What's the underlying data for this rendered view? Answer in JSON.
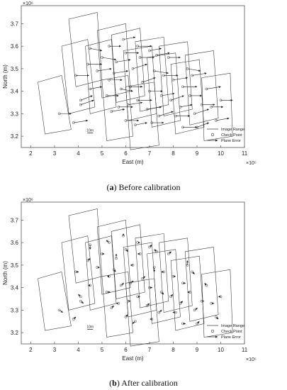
{
  "captions": [
    {
      "letter": "a",
      "text": " Before calibration"
    },
    {
      "letter": "b",
      "text": " After calibration"
    }
  ],
  "chart_data": [
    {
      "type": "scatter",
      "title": "",
      "xlabel": "East (m)",
      "ylabel": "North (m)",
      "x_exponent_label": "×10⁵",
      "y_exponent_label": "×10⁶",
      "xlim": [
        1.6,
        11.0
      ],
      "ylim": [
        3.15,
        3.78
      ],
      "xticks": [
        2,
        3,
        4,
        5,
        6,
        7,
        8,
        9,
        10,
        11
      ],
      "yticks": [
        3.2,
        3.3,
        3.4,
        3.5,
        3.6,
        3.7
      ],
      "scale_label": "10m",
      "error_scale": 1.0,
      "legend": {
        "position": "bottom-right",
        "entries": [
          "Image Range",
          "Check Point",
          "Plane Error"
        ]
      },
      "image_ranges": [
        [
          [
            2.3,
            3.44
          ],
          [
            3.3,
            3.47
          ],
          [
            3.7,
            3.23
          ],
          [
            2.6,
            3.21
          ]
        ],
        [
          [
            3.3,
            3.6
          ],
          [
            4.4,
            3.63
          ],
          [
            4.7,
            3.33
          ],
          [
            3.6,
            3.3
          ]
        ],
        [
          [
            3.6,
            3.72
          ],
          [
            4.8,
            3.75
          ],
          [
            5.0,
            3.45
          ],
          [
            3.9,
            3.42
          ]
        ],
        [
          [
            4.3,
            3.6
          ],
          [
            5.4,
            3.63
          ],
          [
            5.6,
            3.33
          ],
          [
            4.5,
            3.3
          ]
        ],
        [
          [
            4.8,
            3.67
          ],
          [
            6.0,
            3.7
          ],
          [
            6.2,
            3.4
          ],
          [
            5.0,
            3.37
          ]
        ],
        [
          [
            5.4,
            3.65
          ],
          [
            6.6,
            3.68
          ],
          [
            6.8,
            3.38
          ],
          [
            5.6,
            3.35
          ]
        ],
        [
          [
            5.9,
            3.58
          ],
          [
            7.1,
            3.6
          ],
          [
            7.3,
            3.3
          ],
          [
            6.1,
            3.27
          ]
        ],
        [
          [
            6.4,
            3.62
          ],
          [
            7.6,
            3.64
          ],
          [
            7.8,
            3.34
          ],
          [
            6.6,
            3.31
          ]
        ],
        [
          [
            6.9,
            3.55
          ],
          [
            8.1,
            3.57
          ],
          [
            8.3,
            3.27
          ],
          [
            7.1,
            3.24
          ]
        ],
        [
          [
            7.4,
            3.6
          ],
          [
            8.6,
            3.62
          ],
          [
            8.8,
            3.32
          ],
          [
            7.6,
            3.29
          ]
        ],
        [
          [
            7.9,
            3.52
          ],
          [
            9.1,
            3.54
          ],
          [
            9.3,
            3.24
          ],
          [
            8.1,
            3.21
          ]
        ],
        [
          [
            8.5,
            3.56
          ],
          [
            9.7,
            3.58
          ],
          [
            9.9,
            3.28
          ],
          [
            8.7,
            3.25
          ]
        ],
        [
          [
            9.2,
            3.46
          ],
          [
            10.4,
            3.48
          ],
          [
            10.5,
            3.2
          ],
          [
            9.3,
            3.18
          ]
        ],
        [
          [
            5.0,
            3.45
          ],
          [
            6.1,
            3.47
          ],
          [
            6.3,
            3.2
          ],
          [
            5.2,
            3.18
          ]
        ],
        [
          [
            6.0,
            3.42
          ],
          [
            7.2,
            3.44
          ],
          [
            7.4,
            3.16
          ],
          [
            6.2,
            3.14
          ]
        ]
      ],
      "check_points": [
        [
          3.2,
          3.3
        ],
        [
          3.8,
          3.26
        ],
        [
          4.1,
          3.36
        ],
        [
          3.9,
          3.47
        ],
        [
          4.5,
          3.59
        ],
        [
          4.4,
          3.52
        ],
        [
          4.5,
          3.41
        ],
        [
          4.1,
          3.34
        ],
        [
          5.0,
          3.55
        ],
        [
          5.3,
          3.6
        ],
        [
          5.5,
          3.48
        ],
        [
          5.2,
          3.38
        ],
        [
          5.4,
          3.31
        ],
        [
          5.7,
          3.33
        ],
        [
          5.8,
          3.41
        ],
        [
          5.6,
          3.53
        ],
        [
          6.0,
          3.57
        ],
        [
          6.3,
          3.5
        ],
        [
          6.2,
          3.42
        ],
        [
          6.1,
          3.34
        ],
        [
          6.0,
          3.27
        ],
        [
          6.4,
          3.25
        ],
        [
          6.5,
          3.36
        ],
        [
          6.7,
          3.44
        ],
        [
          6.6,
          3.55
        ],
        [
          7.0,
          3.58
        ],
        [
          7.2,
          3.49
        ],
        [
          7.0,
          3.4
        ],
        [
          6.9,
          3.32
        ],
        [
          7.1,
          3.26
        ],
        [
          7.4,
          3.29
        ],
        [
          7.5,
          3.38
        ],
        [
          7.6,
          3.47
        ],
        [
          7.8,
          3.55
        ],
        [
          8.0,
          3.45
        ],
        [
          7.9,
          3.36
        ],
        [
          8.1,
          3.29
        ],
        [
          8.3,
          3.33
        ],
        [
          8.4,
          3.42
        ],
        [
          8.6,
          3.5
        ],
        [
          8.8,
          3.47
        ],
        [
          8.7,
          3.38
        ],
        [
          8.9,
          3.3
        ],
        [
          9.2,
          3.34
        ],
        [
          9.4,
          3.41
        ],
        [
          9.6,
          3.33
        ],
        [
          9.8,
          3.27
        ],
        [
          10.0,
          3.36
        ],
        [
          5.9,
          3.63
        ],
        [
          6.5,
          3.6
        ],
        [
          7.3,
          3.56
        ],
        [
          8.4,
          3.24
        ],
        [
          9.0,
          3.24
        ],
        [
          5.3,
          3.45
        ],
        [
          4.8,
          3.49
        ]
      ],
      "plane_errors_before": [
        [
          0.5,
          0.0
        ],
        [
          0.6,
          0.01
        ],
        [
          0.5,
          0.02
        ],
        [
          0.55,
          0.0
        ],
        [
          0.5,
          -0.01
        ],
        [
          0.6,
          0.0
        ],
        [
          0.5,
          0.01
        ],
        [
          0.55,
          0.02
        ],
        [
          0.6,
          -0.01
        ],
        [
          0.5,
          0.0
        ],
        [
          0.6,
          0.01
        ],
        [
          0.5,
          0.0
        ],
        [
          0.55,
          0.01
        ],
        [
          0.6,
          0.0
        ],
        [
          0.5,
          -0.01
        ],
        [
          0.6,
          0.01
        ],
        [
          0.55,
          0.0
        ],
        [
          0.6,
          0.02
        ],
        [
          0.5,
          0.0
        ],
        [
          0.6,
          0.01
        ],
        [
          0.55,
          0.0
        ],
        [
          0.5,
          0.01
        ],
        [
          0.6,
          0.0
        ],
        [
          0.55,
          0.02
        ],
        [
          0.6,
          0.0
        ],
        [
          0.5,
          0.01
        ],
        [
          0.6,
          -0.01
        ],
        [
          0.55,
          0.0
        ],
        [
          0.6,
          0.01
        ],
        [
          0.5,
          0.0
        ],
        [
          0.6,
          0.02
        ],
        [
          0.55,
          0.01
        ],
        [
          0.6,
          0.0
        ],
        [
          0.5,
          0.0
        ],
        [
          0.6,
          0.01
        ],
        [
          0.55,
          0.02
        ],
        [
          0.6,
          0.0
        ],
        [
          0.5,
          0.01
        ],
        [
          0.6,
          0.0
        ],
        [
          0.55,
          -0.01
        ],
        [
          0.6,
          0.01
        ],
        [
          0.5,
          0.0
        ],
        [
          0.6,
          0.02
        ],
        [
          0.55,
          0.0
        ],
        [
          0.6,
          0.01
        ],
        [
          0.5,
          0.0
        ],
        [
          0.55,
          0.01
        ],
        [
          0.5,
          0.0
        ],
        [
          0.5,
          0.01
        ],
        [
          0.6,
          0.0
        ],
        [
          0.55,
          0.01
        ],
        [
          0.6,
          0.0
        ],
        [
          0.5,
          0.02
        ],
        [
          0.55,
          0.0
        ],
        [
          0.6,
          0.01
        ]
      ],
      "plane_errors_after": [
        [
          0.15,
          -0.01
        ],
        [
          0.1,
          0.01
        ],
        [
          -0.1,
          0.01
        ],
        [
          0.12,
          0.0
        ],
        [
          0.0,
          -0.02
        ],
        [
          0.1,
          0.01
        ],
        [
          -0.08,
          0.0
        ],
        [
          0.12,
          -0.01
        ],
        [
          0.1,
          0.0
        ],
        [
          -0.12,
          0.01
        ],
        [
          0.08,
          -0.01
        ],
        [
          0.15,
          0.0
        ],
        [
          0.1,
          0.01
        ],
        [
          -0.1,
          0.0
        ],
        [
          0.12,
          0.01
        ],
        [
          0.0,
          0.02
        ],
        [
          0.1,
          -0.01
        ],
        [
          -0.1,
          0.0
        ],
        [
          0.12,
          0.01
        ],
        [
          0.1,
          0.0
        ],
        [
          0.08,
          0.01
        ],
        [
          -0.12,
          -0.01
        ],
        [
          0.1,
          0.0
        ],
        [
          0.12,
          0.01
        ],
        [
          -0.1,
          0.0
        ],
        [
          0.1,
          0.01
        ],
        [
          0.0,
          -0.02
        ],
        [
          0.12,
          0.0
        ],
        [
          0.1,
          0.01
        ],
        [
          -0.08,
          0.0
        ],
        [
          0.12,
          0.01
        ],
        [
          0.1,
          -0.01
        ],
        [
          -0.1,
          0.0
        ],
        [
          0.12,
          0.01
        ],
        [
          0.1,
          0.0
        ],
        [
          0.08,
          0.01
        ],
        [
          -0.12,
          0.0
        ],
        [
          0.1,
          0.01
        ],
        [
          0.12,
          0.0
        ],
        [
          0.0,
          0.02
        ],
        [
          0.1,
          -0.01
        ],
        [
          -0.1,
          0.0
        ],
        [
          0.12,
          0.01
        ],
        [
          0.1,
          0.0
        ],
        [
          -0.08,
          0.01
        ],
        [
          0.12,
          0.0
        ],
        [
          0.1,
          -0.01
        ],
        [
          -0.1,
          0.0
        ],
        [
          0.0,
          0.01
        ],
        [
          0.1,
          0.0
        ],
        [
          -0.1,
          0.01
        ],
        [
          0.12,
          0.0
        ],
        [
          0.1,
          0.01
        ],
        [
          -0.08,
          0.0
        ],
        [
          0.1,
          0.0
        ]
      ]
    }
  ]
}
